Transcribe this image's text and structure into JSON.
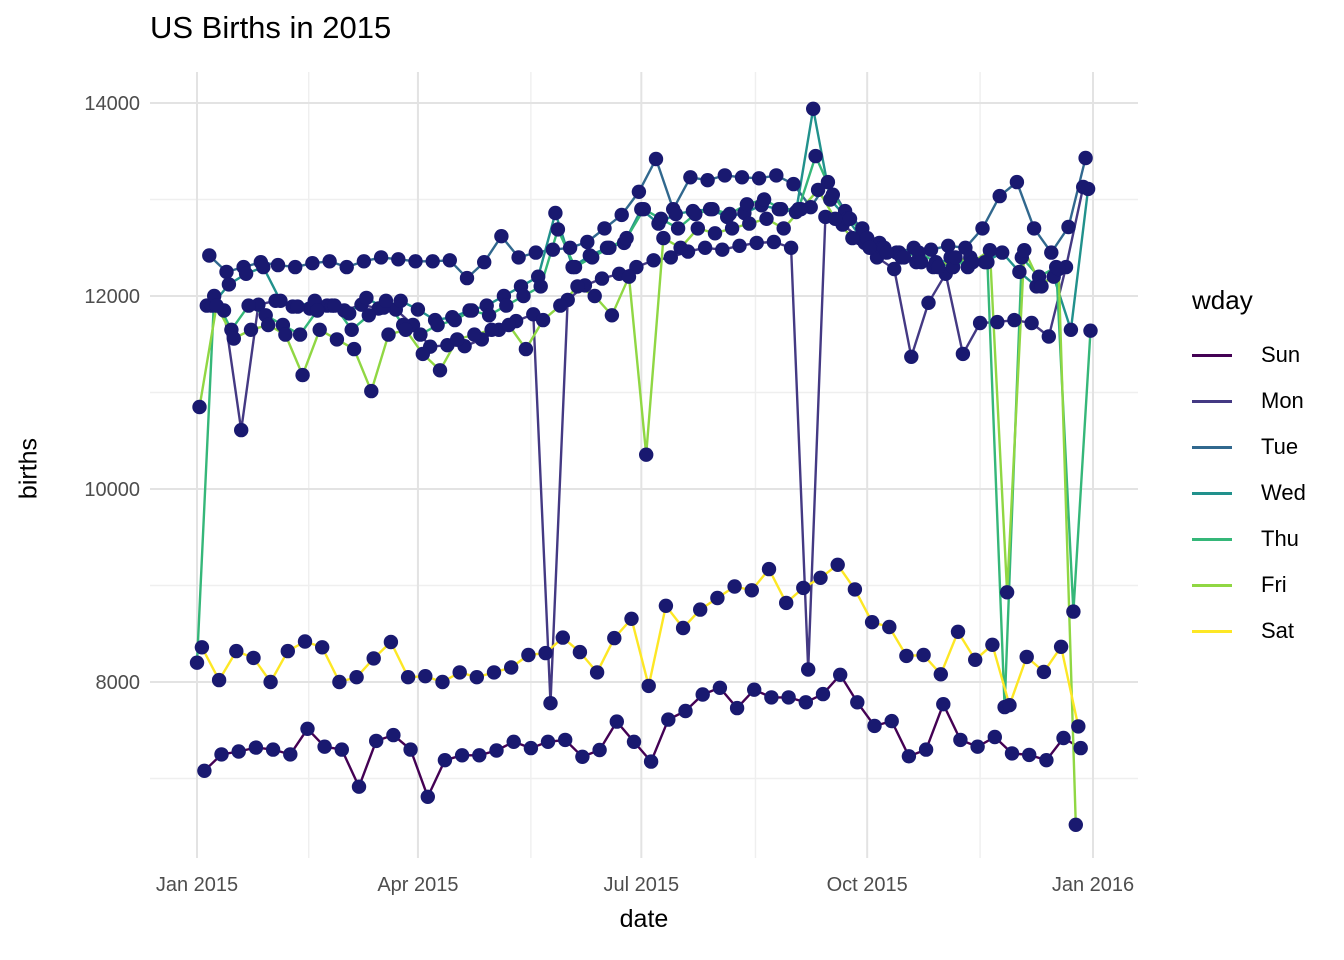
{
  "chart_data": {
    "type": "line",
    "title": "US Births in 2015",
    "xlabel": "date",
    "ylabel": "births",
    "legend_title": "wday",
    "legend_position": "right",
    "point_color": "#191970",
    "grid": true,
    "x_ticks": [
      {
        "label": "Jan 2015",
        "day": 1
      },
      {
        "label": "Apr 2015",
        "day": 91
      },
      {
        "label": "Jul 2015",
        "day": 182
      },
      {
        "label": "Oct 2015",
        "day": 274
      },
      {
        "label": "Jan 2016",
        "day": 366
      }
    ],
    "x_minor_days": [
      46.5,
      137,
      228.5,
      320
    ],
    "y_ticks": [
      8000,
      10000,
      12000,
      14000
    ],
    "y_minor": [
      7000,
      9000,
      11000,
      13000
    ],
    "ylim": [
      6150,
      14320
    ],
    "series": [
      {
        "name": "Sun",
        "color": "#440154",
        "start_day": 4,
        "step_days": 7,
        "values": [
          7080,
          7250,
          7280,
          7320,
          7300,
          7250,
          7515,
          7330,
          7300,
          6915,
          7390,
          7450,
          7300,
          6810,
          7190,
          7240,
          7240,
          7290,
          7380,
          7315,
          7380,
          7400,
          7225,
          7295,
          7590,
          7380,
          7175,
          7610,
          7700,
          7870,
          7940,
          7730,
          7920,
          7840,
          7840,
          7790,
          7875,
          8075,
          7790,
          7545,
          7595,
          7230,
          7300,
          7770,
          7400,
          7330,
          7430,
          7260,
          7245,
          7190,
          7420,
          7315
        ]
      },
      {
        "name": "Mon",
        "color": "#443983",
        "start_day": 5,
        "step_days": 7,
        "values": [
          11900,
          11850,
          10610,
          11910,
          11950,
          11890,
          11870,
          11900,
          11850,
          11910,
          11870,
          11860,
          11700,
          11475,
          11490,
          11480,
          11550,
          11650,
          11740,
          11810,
          7780,
          11960,
          12110,
          12180,
          12230,
          12300,
          12370,
          12400,
          12460,
          12500,
          12480,
          12520,
          12550,
          12560,
          12500,
          8130,
          12820,
          12740,
          12600,
          12400,
          12280,
          11370,
          11930,
          12230,
          11400,
          11720,
          11730,
          11750,
          11720,
          11580,
          12300,
          13130
        ]
      },
      {
        "name": "Tue",
        "color": "#31688E",
        "start_day": 6,
        "step_days": 7,
        "values": [
          12420,
          12250,
          12300,
          12350,
          12320,
          12300,
          12340,
          12360,
          12300,
          12360,
          12400,
          12380,
          12360,
          12360,
          12370,
          12185,
          12350,
          12620,
          12400,
          12450,
          12480,
          12500,
          12560,
          12700,
          12840,
          13080,
          13420,
          12900,
          13230,
          13200,
          13250,
          13230,
          13220,
          13250,
          13160,
          12920,
          13180,
          12880,
          12700,
          12550,
          12450,
          12500,
          12480,
          12520,
          12500,
          12700,
          13035,
          13180,
          12700,
          12450,
          12715,
          13430
        ]
      },
      {
        "name": "Wed",
        "color": "#21918C",
        "start_day": 7,
        "step_days": 7,
        "values": [
          11900,
          12120,
          12230,
          12300,
          11950,
          11890,
          11950,
          11900,
          11820,
          11980,
          11880,
          11950,
          11860,
          11750,
          11780,
          11850,
          11900,
          12000,
          12100,
          12200,
          12860,
          12300,
          12420,
          12500,
          12550,
          12900,
          12750,
          12850,
          12880,
          12900,
          12820,
          12860,
          12940,
          12900,
          12870,
          13940,
          13000,
          12800,
          12550,
          12500,
          12450,
          12350,
          12300,
          12400,
          12300,
          12350,
          12450,
          12250,
          12100,
          12200,
          11650,
          13110
        ]
      },
      {
        "name": "Thu",
        "color": "#35B779",
        "start_day": 1,
        "step_days": 7,
        "values": [
          8200,
          12000,
          11650,
          11900,
          11800,
          11700,
          11600,
          11850,
          11900,
          11650,
          11800,
          11950,
          11700,
          11600,
          11700,
          11750,
          11850,
          11800,
          11900,
          12000,
          12100,
          12690,
          12300,
          12400,
          12500,
          12600,
          12900,
          12800,
          12700,
          12850,
          12900,
          12850,
          12950,
          13000,
          12900,
          12900,
          13450,
          13050,
          12800,
          12600,
          12500,
          12400,
          12450,
          12350,
          12300,
          12400,
          12350,
          7740,
          12400,
          12200,
          12300,
          8730,
          11640
        ]
      },
      {
        "name": "Fri",
        "color": "#90D743",
        "start_day": 2,
        "step_days": 7,
        "values": [
          10850,
          11900,
          11560,
          11650,
          11700,
          11600,
          11180,
          11650,
          11550,
          11450,
          11015,
          11600,
          11650,
          11400,
          11230,
          11550,
          11600,
          11650,
          11700,
          11450,
          11750,
          11900,
          12100,
          12000,
          11800,
          12200,
          10355,
          12600,
          12500,
          12700,
          12650,
          12700,
          12750,
          12800,
          12700,
          12900,
          13100,
          12800,
          12600,
          12500,
          12450,
          12400,
          12350,
          12300,
          12400,
          12350,
          12475,
          8930,
          12475,
          12100,
          12280,
          6520
        ]
      },
      {
        "name": "Sat",
        "color": "#FDE725",
        "start_day": 3,
        "step_days": 7,
        "values": [
          8360,
          8020,
          8320,
          8250,
          8000,
          8320,
          8420,
          8360,
          8000,
          8050,
          8245,
          8415,
          8050,
          8060,
          8000,
          8100,
          8050,
          8100,
          8150,
          8280,
          8300,
          8460,
          8310,
          8100,
          8455,
          8655,
          7960,
          8790,
          8560,
          8750,
          8870,
          8990,
          8950,
          9170,
          8820,
          8975,
          9080,
          9215,
          8960,
          8620,
          8570,
          8270,
          8280,
          8080,
          8520,
          8230,
          8385,
          7760,
          8260,
          8105,
          8365,
          7540
        ]
      }
    ]
  }
}
